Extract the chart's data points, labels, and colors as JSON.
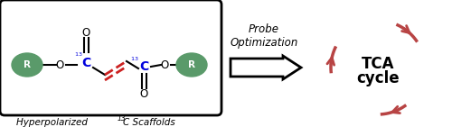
{
  "bg_color": "#ffffff",
  "box_color": "#000000",
  "green_color": "#5a9a6a",
  "blue_color": "#0000dd",
  "red_color": "#cc2222",
  "cycle_color": "#b84444",
  "tca_text_line1": "TCA",
  "tca_text_line2": "cycle",
  "probe_line1": "Probe",
  "probe_line2": "Optimization",
  "caption_text": "Hyperpolarized ",
  "caption_sup": "13",
  "caption_end": "C Scaffolds",
  "figw": 5.0,
  "figh": 1.51,
  "dpi": 100
}
